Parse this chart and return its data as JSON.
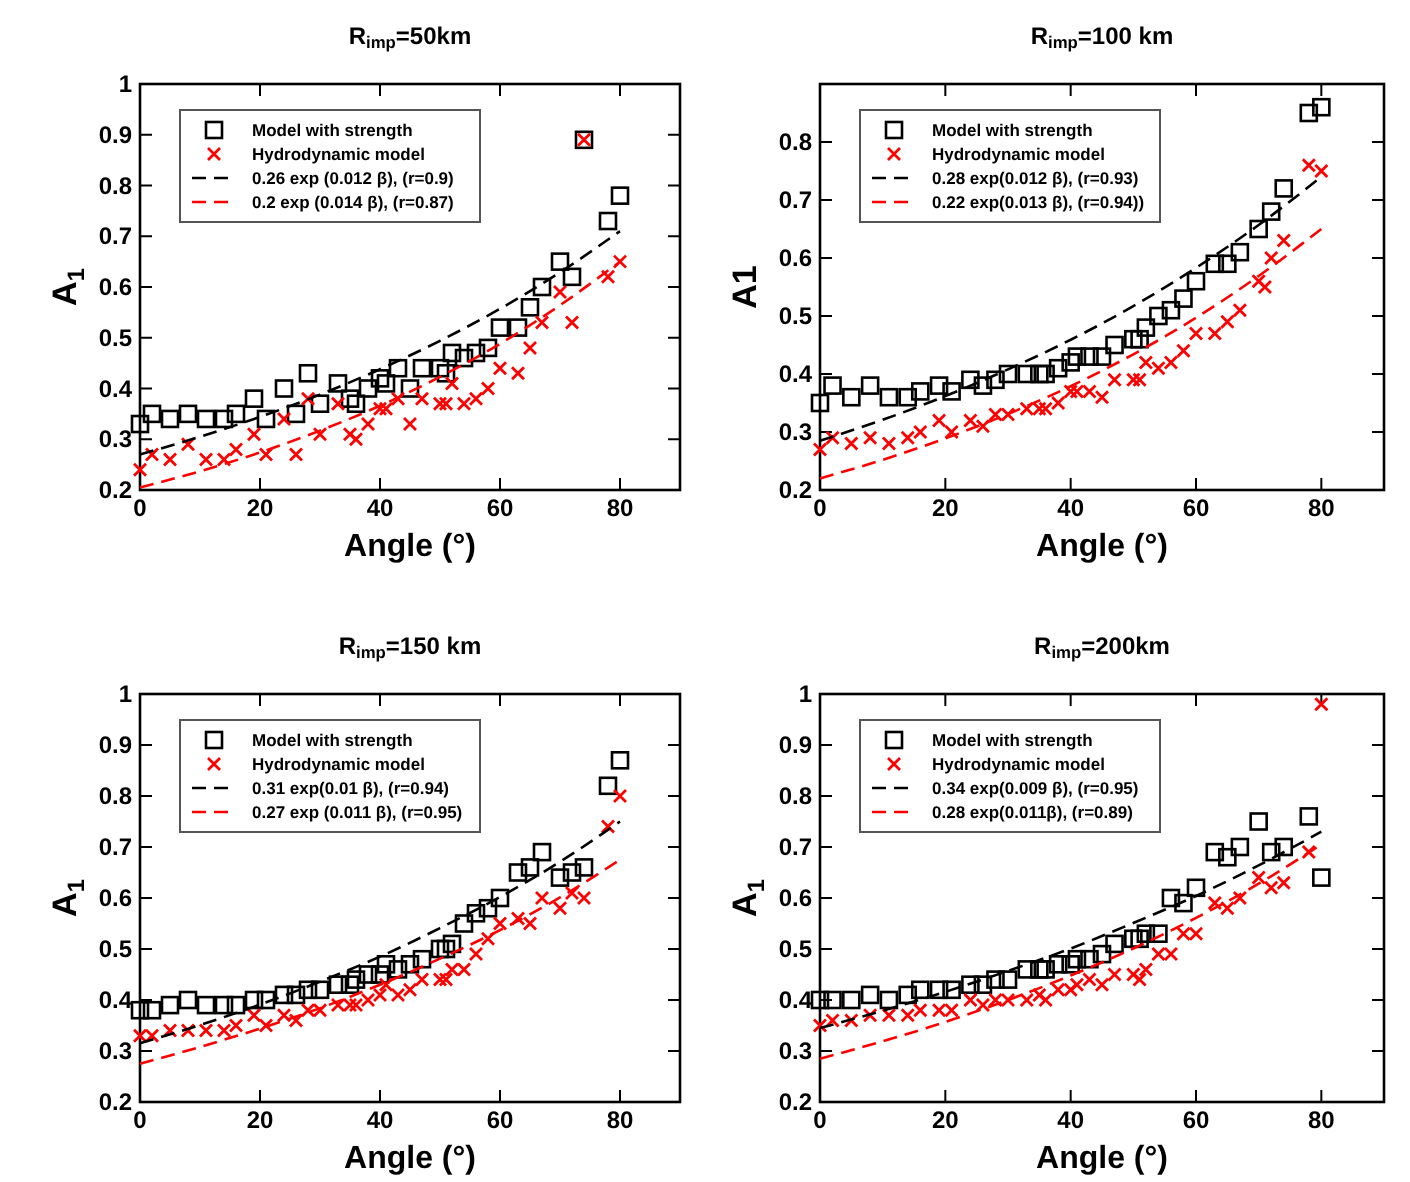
{
  "chart_data": [
    {
      "type": "scatter",
      "title": "R$_{imp}$=50km",
      "xlabel": "Angle (°)",
      "ylabel": "A$_{1}$",
      "xlim": [
        0,
        90
      ],
      "ylim": [
        0.2,
        1
      ],
      "xticks": [
        0,
        20,
        40,
        60,
        80
      ],
      "yticks": [
        0.2,
        0.3,
        0.4,
        0.5,
        0.6,
        0.7,
        0.8,
        0.9,
        1
      ],
      "legend": "top left",
      "grid": false,
      "series": [
        {
          "name": "Model with strength",
          "marker": "square",
          "color": "#000000",
          "x": [
            0,
            2,
            5,
            8,
            11,
            14,
            16,
            19,
            21,
            24,
            26,
            28,
            30,
            33,
            35,
            36,
            38,
            40,
            41,
            43,
            45,
            47,
            50,
            51,
            52,
            54,
            56,
            58,
            60,
            63,
            65,
            67,
            70,
            72,
            74,
            78,
            80
          ],
          "values": [
            0.33,
            0.35,
            0.34,
            0.35,
            0.34,
            0.34,
            0.35,
            0.38,
            0.34,
            0.4,
            0.35,
            0.43,
            0.37,
            0.41,
            0.38,
            0.37,
            0.4,
            0.42,
            0.41,
            0.44,
            0.4,
            0.44,
            0.44,
            0.43,
            0.47,
            0.46,
            0.47,
            0.48,
            0.52,
            0.52,
            0.56,
            0.6,
            0.65,
            0.62,
            0.89,
            0.73,
            0.78
          ]
        },
        {
          "name": "Hydrodynamic model",
          "marker": "cross",
          "color": "#ff0000",
          "x": [
            0,
            2,
            5,
            8,
            11,
            14,
            16,
            19,
            21,
            24,
            26,
            28,
            30,
            33,
            35,
            36,
            38,
            40,
            41,
            43,
            45,
            47,
            50,
            51,
            52,
            54,
            56,
            58,
            60,
            63,
            65,
            67,
            70,
            72,
            74,
            78,
            80
          ],
          "values": [
            0.24,
            0.27,
            0.26,
            0.29,
            0.26,
            0.26,
            0.28,
            0.31,
            0.27,
            0.34,
            0.27,
            0.38,
            0.31,
            0.37,
            0.31,
            0.3,
            0.33,
            0.36,
            0.36,
            0.38,
            0.33,
            0.38,
            0.37,
            0.37,
            0.41,
            0.37,
            0.38,
            0.4,
            0.44,
            0.43,
            0.48,
            0.53,
            0.59,
            0.53,
            0.89,
            0.62,
            0.65
          ]
        },
        {
          "name": "0.26 exp (0.012 β), (r=0.9)",
          "type": "line",
          "line_style": "dashed",
          "color": "#000000",
          "x": [
            0,
            10,
            20,
            30,
            40,
            50,
            60,
            70,
            80
          ],
          "values": [
            0.27,
            0.305,
            0.344,
            0.388,
            0.438,
            0.494,
            0.557,
            0.629,
            0.71
          ]
        },
        {
          "name": "0.2 exp (0.014 β), (r=0.87)",
          "type": "line",
          "line_style": "dashed",
          "color": "#ff0000",
          "x": [
            0,
            10,
            20,
            30,
            40,
            50,
            60,
            70,
            80
          ],
          "values": [
            0.205,
            0.237,
            0.274,
            0.317,
            0.366,
            0.423,
            0.488,
            0.564,
            0.65
          ]
        }
      ]
    },
    {
      "type": "scatter",
      "title": "R$_{imp}$=100 km",
      "xlabel": "Angle (°)",
      "ylabel": "A1",
      "xlim": [
        0,
        90
      ],
      "ylim": [
        0.2,
        0.9
      ],
      "xticks": [
        0,
        20,
        40,
        60,
        80
      ],
      "yticks": [
        0.2,
        0.3,
        0.4,
        0.5,
        0.6,
        0.7,
        0.8
      ],
      "legend": "top left",
      "grid": false,
      "series": [
        {
          "name": "Model with strength",
          "marker": "square",
          "color": "#000000",
          "x": [
            0,
            2,
            5,
            8,
            11,
            14,
            16,
            19,
            21,
            24,
            26,
            28,
            30,
            33,
            35,
            36,
            38,
            40,
            41,
            43,
            45,
            47,
            50,
            51,
            52,
            54,
            56,
            58,
            60,
            63,
            65,
            67,
            70,
            72,
            74,
            78,
            80
          ],
          "values": [
            0.35,
            0.38,
            0.36,
            0.38,
            0.36,
            0.36,
            0.37,
            0.38,
            0.37,
            0.39,
            0.38,
            0.39,
            0.4,
            0.4,
            0.4,
            0.4,
            0.41,
            0.42,
            0.43,
            0.43,
            0.43,
            0.45,
            0.46,
            0.46,
            0.48,
            0.5,
            0.51,
            0.53,
            0.56,
            0.59,
            0.59,
            0.61,
            0.65,
            0.68,
            0.72,
            0.85,
            0.86
          ]
        },
        {
          "name": "Hydrodynamic model",
          "marker": "cross",
          "color": "#ff0000",
          "x": [
            0,
            2,
            5,
            8,
            11,
            14,
            16,
            19,
            21,
            24,
            26,
            28,
            30,
            33,
            35,
            36,
            38,
            40,
            41,
            43,
            45,
            47,
            50,
            51,
            52,
            54,
            56,
            58,
            60,
            63,
            65,
            67,
            70,
            71,
            72,
            74,
            78,
            80
          ],
          "values": [
            0.27,
            0.29,
            0.28,
            0.29,
            0.28,
            0.29,
            0.3,
            0.32,
            0.3,
            0.32,
            0.31,
            0.33,
            0.33,
            0.34,
            0.34,
            0.34,
            0.35,
            0.37,
            0.37,
            0.37,
            0.36,
            0.39,
            0.39,
            0.39,
            0.42,
            0.41,
            0.42,
            0.44,
            0.47,
            0.47,
            0.49,
            0.51,
            0.56,
            0.55,
            0.6,
            0.63,
            0.76,
            0.75
          ]
        },
        {
          "name": "0.28 exp(0.012 β), (r=0.93)",
          "type": "line",
          "line_style": "dashed",
          "color": "#000000",
          "x": [
            0,
            10,
            20,
            30,
            40,
            50,
            60,
            70,
            80
          ],
          "values": [
            0.285,
            0.321,
            0.362,
            0.408,
            0.459,
            0.517,
            0.583,
            0.657,
            0.74
          ]
        },
        {
          "name": "0.22 exp(0.013 β), (r=0.94))",
          "type": "line",
          "line_style": "dashed",
          "color": "#ff0000",
          "x": [
            0,
            10,
            20,
            30,
            40,
            50,
            60,
            70,
            80
          ],
          "values": [
            0.22,
            0.252,
            0.289,
            0.331,
            0.379,
            0.434,
            0.497,
            0.569,
            0.65
          ]
        }
      ]
    },
    {
      "type": "scatter",
      "title": "R$_{imp}$=150 km",
      "xlabel": "Angle (°)",
      "ylabel": "A$_{1}$",
      "xlim": [
        0,
        90
      ],
      "ylim": [
        0.2,
        1
      ],
      "xticks": [
        0,
        20,
        40,
        60,
        80
      ],
      "yticks": [
        0.2,
        0.3,
        0.4,
        0.5,
        0.6,
        0.7,
        0.8,
        0.9,
        1
      ],
      "legend": "top left",
      "grid": false,
      "series": [
        {
          "name": "Model with strength",
          "marker": "square",
          "color": "#000000",
          "x": [
            0,
            2,
            5,
            8,
            11,
            14,
            16,
            19,
            21,
            24,
            26,
            28,
            30,
            33,
            35,
            36,
            38,
            40,
            41,
            43,
            45,
            47,
            50,
            51,
            52,
            54,
            56,
            58,
            60,
            63,
            65,
            67,
            70,
            72,
            74,
            78,
            80
          ],
          "values": [
            0.38,
            0.38,
            0.39,
            0.4,
            0.39,
            0.39,
            0.39,
            0.4,
            0.4,
            0.41,
            0.41,
            0.42,
            0.42,
            0.43,
            0.43,
            0.44,
            0.45,
            0.45,
            0.47,
            0.46,
            0.47,
            0.48,
            0.5,
            0.5,
            0.51,
            0.55,
            0.57,
            0.58,
            0.6,
            0.65,
            0.66,
            0.69,
            0.64,
            0.65,
            0.66,
            0.82,
            0.87
          ]
        },
        {
          "name": "Hydrodynamic model",
          "marker": "cross",
          "color": "#ff0000",
          "x": [
            0,
            2,
            5,
            8,
            11,
            14,
            16,
            19,
            21,
            24,
            26,
            28,
            30,
            33,
            35,
            36,
            38,
            40,
            41,
            43,
            45,
            47,
            50,
            51,
            52,
            54,
            56,
            58,
            60,
            63,
            65,
            67,
            70,
            72,
            74,
            78,
            80
          ],
          "values": [
            0.33,
            0.33,
            0.34,
            0.34,
            0.34,
            0.34,
            0.35,
            0.37,
            0.35,
            0.37,
            0.36,
            0.38,
            0.38,
            0.39,
            0.39,
            0.39,
            0.4,
            0.41,
            0.43,
            0.41,
            0.42,
            0.44,
            0.44,
            0.44,
            0.46,
            0.46,
            0.49,
            0.52,
            0.55,
            0.56,
            0.55,
            0.6,
            0.58,
            0.61,
            0.6,
            0.74,
            0.8
          ]
        },
        {
          "name": "0.31 exp(0.01 β), (r=0.94)",
          "type": "line",
          "line_style": "dashed",
          "color": "#000000",
          "x": [
            0,
            10,
            20,
            30,
            40,
            50,
            60,
            70,
            80
          ],
          "values": [
            0.315,
            0.351,
            0.391,
            0.436,
            0.485,
            0.541,
            0.602,
            0.671,
            0.75
          ]
        },
        {
          "name": "0.27 exp (0.011 β), (r=0.95)",
          "type": "line",
          "line_style": "dashed",
          "color": "#ff0000",
          "x": [
            0,
            10,
            20,
            30,
            40,
            50,
            60,
            70,
            80
          ],
          "values": [
            0.275,
            0.308,
            0.344,
            0.384,
            0.43,
            0.481,
            0.537,
            0.601,
            0.675
          ]
        }
      ]
    },
    {
      "type": "scatter",
      "title": "R$_{imp}$=200km",
      "xlabel": "Angle (°)",
      "ylabel": "A$_{1}$",
      "xlim": [
        0,
        90
      ],
      "ylim": [
        0.2,
        1
      ],
      "xticks": [
        0,
        20,
        40,
        60,
        80
      ],
      "yticks": [
        0.2,
        0.3,
        0.4,
        0.5,
        0.6,
        0.7,
        0.8,
        0.9,
        1
      ],
      "legend": "top left",
      "grid": false,
      "series": [
        {
          "name": "Model with strength",
          "marker": "square",
          "color": "#000000",
          "x": [
            0,
            2,
            5,
            8,
            11,
            14,
            16,
            19,
            21,
            24,
            26,
            28,
            30,
            33,
            35,
            36,
            38,
            40,
            41,
            43,
            45,
            47,
            50,
            51,
            52,
            54,
            56,
            58,
            60,
            63,
            65,
            67,
            70,
            72,
            74,
            78,
            80
          ],
          "values": [
            0.4,
            0.4,
            0.4,
            0.41,
            0.4,
            0.41,
            0.42,
            0.42,
            0.42,
            0.43,
            0.43,
            0.44,
            0.44,
            0.46,
            0.46,
            0.46,
            0.47,
            0.47,
            0.48,
            0.48,
            0.49,
            0.51,
            0.52,
            0.52,
            0.53,
            0.53,
            0.6,
            0.59,
            0.62,
            0.69,
            0.68,
            0.7,
            0.75,
            0.69,
            0.7,
            0.76,
            0.64
          ]
        },
        {
          "name": "Hydrodynamic model",
          "marker": "cross",
          "color": "#ff0000",
          "x": [
            0,
            2,
            5,
            8,
            11,
            14,
            16,
            19,
            21,
            24,
            26,
            28,
            30,
            33,
            35,
            36,
            38,
            40,
            41,
            43,
            45,
            47,
            50,
            51,
            52,
            54,
            56,
            58,
            60,
            63,
            65,
            67,
            70,
            72,
            74,
            78,
            80
          ],
          "values": [
            0.35,
            0.36,
            0.36,
            0.37,
            0.37,
            0.37,
            0.38,
            0.38,
            0.38,
            0.4,
            0.39,
            0.4,
            0.4,
            0.4,
            0.41,
            0.4,
            0.42,
            0.42,
            0.43,
            0.44,
            0.43,
            0.45,
            0.45,
            0.44,
            0.46,
            0.49,
            0.49,
            0.53,
            0.53,
            0.59,
            0.58,
            0.6,
            0.64,
            0.62,
            0.63,
            0.69,
            0.98
          ]
        },
        {
          "name": "0.34 exp(0.009 β), (r=0.95)",
          "type": "line",
          "line_style": "dashed",
          "color": "#000000",
          "x": [
            0,
            10,
            20,
            30,
            40,
            50,
            60,
            70,
            80
          ],
          "values": [
            0.345,
            0.379,
            0.416,
            0.457,
            0.501,
            0.551,
            0.604,
            0.664,
            0.73
          ]
        },
        {
          "name": "0.28 exp(0.011β), (r=0.89)",
          "type": "line",
          "line_style": "dashed",
          "color": "#ff0000",
          "x": [
            0,
            10,
            20,
            30,
            40,
            50,
            60,
            70,
            80
          ],
          "values": [
            0.285,
            0.319,
            0.357,
            0.4,
            0.448,
            0.501,
            0.561,
            0.628,
            0.705
          ]
        }
      ]
    }
  ]
}
